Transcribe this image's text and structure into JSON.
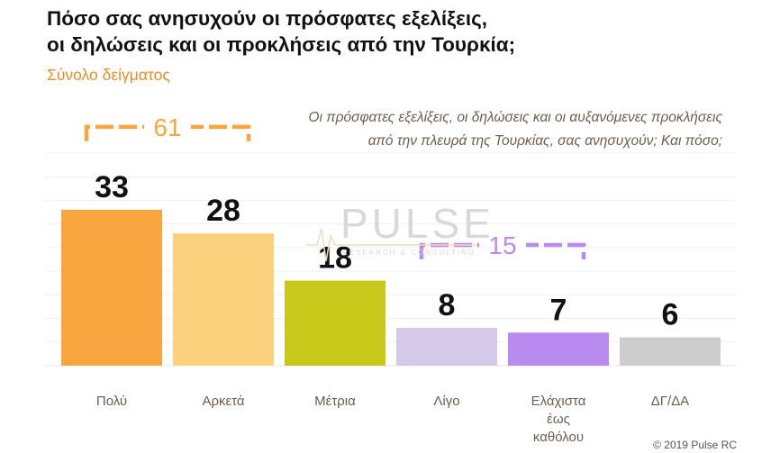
{
  "title_line1": "Πόσο σας ανησυχούν οι πρόσφατες εξελίξεις,",
  "title_line2": "οι δηλώσεις και οι προκλήσεις από την Τουρκία;",
  "subtitle": "Σύνολο δείγματος",
  "question_line1": "Οι πρόσφατες εξελίξεις, οι δηλώσεις και οι αυξανόμενες προκλήσεις",
  "question_line2": "από την πλευρά της Τουρκίας, σας ανησυχούν; Και πόσο;",
  "watermark": {
    "word": "PULSE",
    "sub": "RESEARCH & CONSULTING"
  },
  "copyright": "© 2019 Pulse RC",
  "chart_data": {
    "type": "bar",
    "categories": [
      "Πολύ",
      "Αρκετά",
      "Μέτρια",
      "Λίγο",
      "Ελάχιστα έως καθόλου",
      "ΔΓ/ΔΑ"
    ],
    "category_lines": [
      [
        "Πολύ"
      ],
      [
        "Αρκετά"
      ],
      [
        "Μέτρια"
      ],
      [
        "Λίγο"
      ],
      [
        "Ελάχιστα",
        "έως",
        "καθόλου"
      ],
      [
        "ΔΓ/ΔΑ"
      ]
    ],
    "values": [
      33,
      28,
      18,
      8,
      7,
      6
    ],
    "data_labels": [
      "33",
      "28",
      "18",
      "8",
      "7",
      "6"
    ],
    "colors": [
      "#f9a640",
      "#fbd17e",
      "#c8c81a",
      "#d5c9ea",
      "#b98af0",
      "#cdcdcd"
    ],
    "ylim": [
      0,
      45
    ],
    "grid": true,
    "brackets": [
      {
        "label": "61",
        "from": 0,
        "to": 1,
        "color": "#f9a640"
      },
      {
        "label": "15",
        "from": 3,
        "to": 4,
        "color": "#b98af0"
      }
    ]
  }
}
